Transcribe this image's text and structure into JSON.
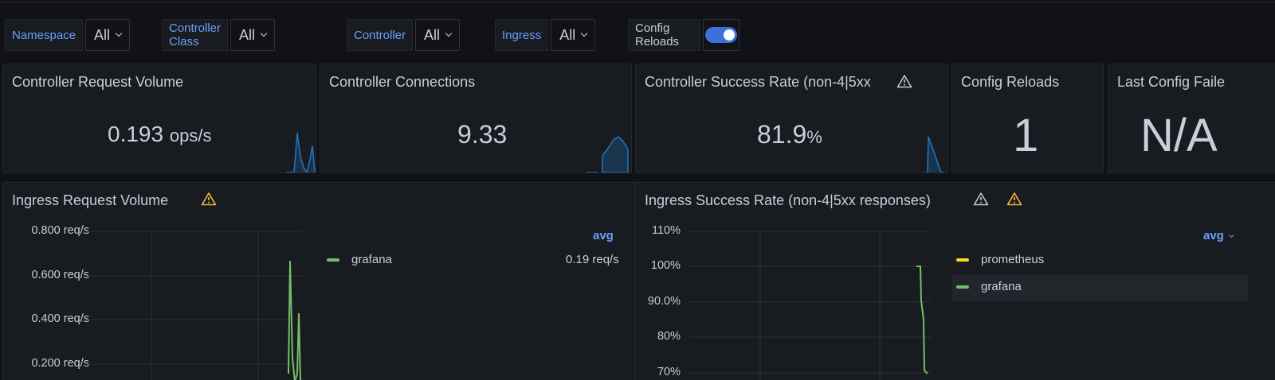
{
  "variables": {
    "namespace": {
      "label": "Namespace",
      "value": "All"
    },
    "controller_class": {
      "label": "Controller Class",
      "value": "All"
    },
    "controller": {
      "label": "Controller",
      "value": "All"
    },
    "ingress": {
      "label": "Ingress",
      "value": "All"
    },
    "config_reloads": {
      "label": "Config Reloads",
      "enabled": true
    }
  },
  "stats": {
    "request_volume": {
      "title": "Controller Request Volume",
      "value": "0.193",
      "unit": "ops/s"
    },
    "connections": {
      "title": "Controller Connections",
      "value": "9.33"
    },
    "success_rate": {
      "title": "Controller Success Rate (non-4|5xx",
      "value": "81.9",
      "unit": "%"
    },
    "config_reloads": {
      "title": "Config Reloads",
      "value": "1"
    },
    "last_config_failed": {
      "title": "Last Config Faile",
      "value": "N/A"
    }
  },
  "graphs": {
    "ingress_request_volume": {
      "title": "Ingress Request Volume",
      "calc": "avg",
      "y_ticks": [
        "0.800 req/s",
        "0.600 req/s",
        "0.400 req/s",
        "0.200 req/s"
      ],
      "legend": [
        {
          "name": "grafana",
          "value": "0.19 req/s",
          "color": "#73bf69"
        }
      ]
    },
    "ingress_success_rate": {
      "title": "Ingress Success Rate (non-4|5xx responses)",
      "calc": "avg",
      "y_ticks": [
        "110%",
        "100%",
        "90.0%",
        "80%",
        "70%"
      ],
      "legend": [
        {
          "name": "prometheus",
          "color": "#fade2a"
        },
        {
          "name": "grafana",
          "color": "#73bf69"
        }
      ]
    }
  },
  "colors": {
    "accent": "#6e9fff",
    "spark": "#1f78c1",
    "warning": "#f5b73d",
    "series_green": "#73bf69",
    "series_yellow": "#fade2a"
  }
}
